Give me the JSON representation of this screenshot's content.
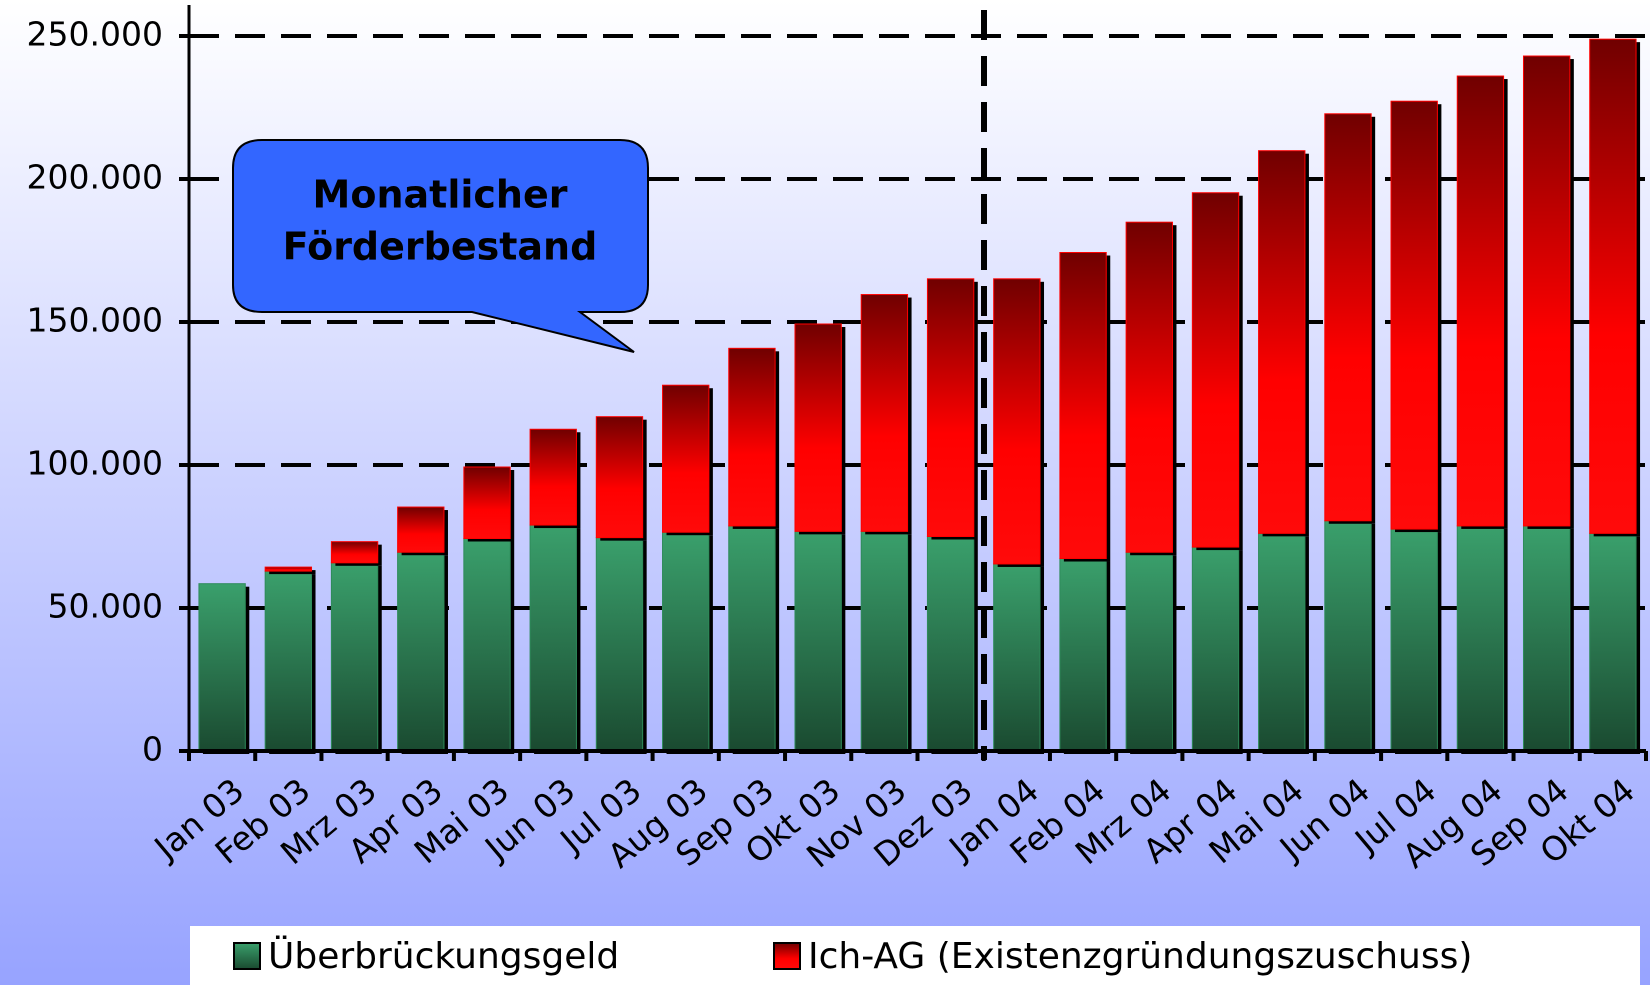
{
  "chart_data": {
    "type": "stacked_bar",
    "annotation": [
      "Monatlicher",
      "Förderbestand"
    ],
    "categories": [
      "Jan 03",
      "Feb 03",
      "Mrz 03",
      "Apr 03",
      "Mai 03",
      "Jun 03",
      "Jul 03",
      "Aug 03",
      "Sep 03",
      "Okt 03",
      "Nov 03",
      "Dez 03",
      "Jan 04",
      "Feb 04",
      "Mrz 04",
      "Apr 04",
      "Mai 04",
      "Jun 04",
      "Jul 04",
      "Aug 04",
      "Sep 04",
      "Okt 04"
    ],
    "series": [
      {
        "name": "Überbrückungsgeld",
        "color": "#2e8b5a",
        "values": [
          58500,
          62900,
          65800,
          69500,
          74300,
          79000,
          74600,
          76500,
          78700,
          76800,
          76800,
          75000,
          65400,
          67300,
          69500,
          71300,
          76100,
          80500,
          77600,
          78700,
          78700,
          76100
        ]
      },
      {
        "name": "Ich-AG (Existenzgründungszuschuss)",
        "color": "#ff0000",
        "values": [
          0,
          1400,
          7400,
          15800,
          25000,
          33500,
          42300,
          51400,
          62100,
          72500,
          82800,
          90100,
          99700,
          107000,
          115400,
          123900,
          133800,
          142300,
          149600,
          157300,
          164300,
          172800
        ]
      }
    ],
    "ylim": [
      0,
      250000
    ],
    "yticks": [
      0,
      {
        "value": 50000,
        "label": "50.000"
      },
      {
        "value": 100000,
        "label": "100.000"
      },
      {
        "value": 150000,
        "label": "150.000"
      },
      {
        "value": 200000,
        "label": "200.000"
      },
      {
        "value": 250000,
        "label": "250.000"
      }
    ],
    "grid": true
  }
}
